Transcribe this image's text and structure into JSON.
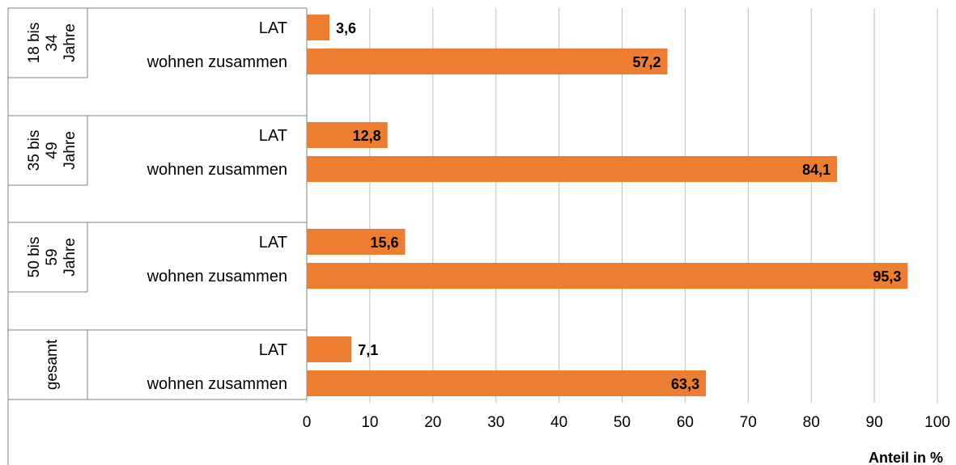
{
  "chart_data": {
    "type": "bar",
    "orientation": "horizontal",
    "title": "",
    "xlabel": "Anteil in %",
    "xlim": [
      0,
      100
    ],
    "x_ticks": [
      "0",
      "10",
      "20",
      "30",
      "40",
      "50",
      "60",
      "70",
      "80",
      "90",
      "100"
    ],
    "grid": true,
    "bar_color": "#ED7D31",
    "groups": [
      {
        "label_lines": [
          "18 bis",
          "34",
          "Jahre"
        ],
        "bars": [
          {
            "category": "LAT",
            "value": 3.6,
            "label": "3,6"
          },
          {
            "category": "wohnen zusammen",
            "value": 57.2,
            "label": "57,2"
          }
        ]
      },
      {
        "label_lines": [
          "35 bis",
          "49",
          "Jahre"
        ],
        "bars": [
          {
            "category": "LAT",
            "value": 12.8,
            "label": "12,8"
          },
          {
            "category": "wohnen zusammen",
            "value": 84.1,
            "label": "84,1"
          }
        ]
      },
      {
        "label_lines": [
          "50 bis",
          "59",
          "Jahre"
        ],
        "bars": [
          {
            "category": "LAT",
            "value": 15.6,
            "label": "15,6"
          },
          {
            "category": "wohnen zusammen",
            "value": 95.3,
            "label": "95,3"
          }
        ]
      },
      {
        "label_lines": [
          "gesamt"
        ],
        "bars": [
          {
            "category": "LAT",
            "value": 7.1,
            "label": "7,1"
          },
          {
            "category": "wohnen zusammen",
            "value": 63.3,
            "label": "63,3"
          }
        ]
      }
    ]
  }
}
